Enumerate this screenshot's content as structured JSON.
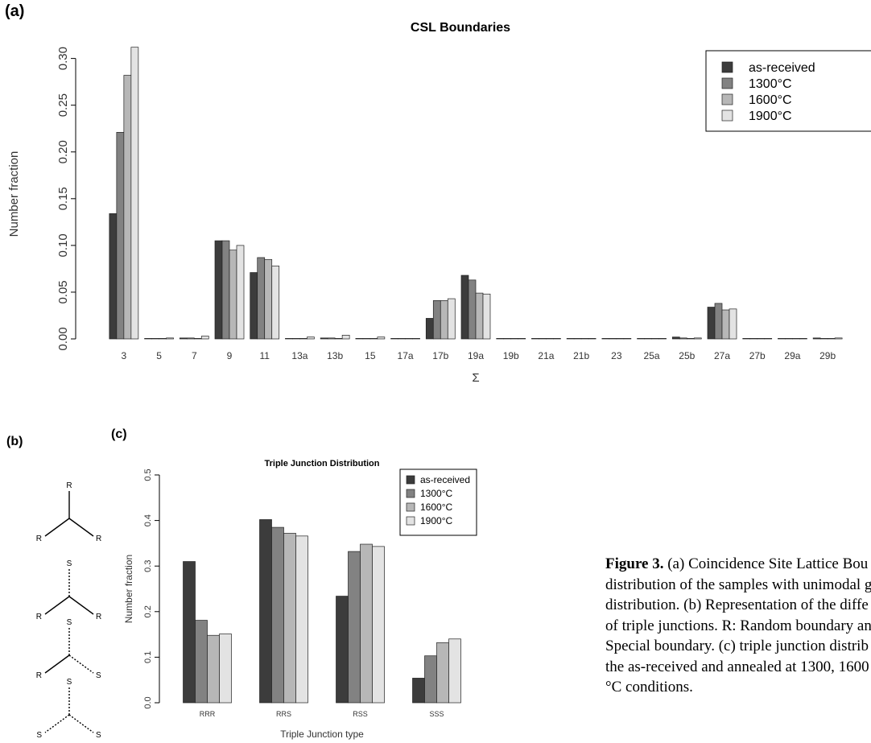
{
  "panels": {
    "a": "(a)",
    "b": "(b)",
    "c": "(c)"
  },
  "chart_data": [
    {
      "id": "csl",
      "type": "bar",
      "title": "CSL Boundaries",
      "xlabel": "Σ",
      "ylabel": "Number fraction",
      "ylim": [
        0,
        0.31
      ],
      "yticks": [
        "0.00",
        "0.05",
        "0.10",
        "0.15",
        "0.20",
        "0.25",
        "0.30"
      ],
      "grid": false,
      "legend_position": "top-right",
      "categories": [
        "3",
        "5",
        "7",
        "9",
        "11",
        "13a",
        "13b",
        "15",
        "17a",
        "17b",
        "19a",
        "19b",
        "21a",
        "21b",
        "23",
        "25a",
        "25b",
        "27a",
        "27b",
        "29a",
        "29b"
      ],
      "series": [
        {
          "name": "as-received",
          "color": "#3c3c3c",
          "values": [
            0.134,
            0.0,
            0.001,
            0.105,
            0.071,
            0.0,
            0.001,
            0.0,
            0.0,
            0.022,
            0.068,
            0.0,
            0.0,
            0.0,
            0.0,
            0.0,
            0.002,
            0.034,
            0.0,
            0.0,
            0.001
          ]
        },
        {
          "name": "1300°C",
          "color": "#828282",
          "values": [
            0.221,
            0.0,
            0.001,
            0.105,
            0.087,
            0.0,
            0.001,
            0.0,
            0.0,
            0.041,
            0.063,
            0.0,
            0.0,
            0.0,
            0.0,
            0.0,
            0.001,
            0.038,
            0.0,
            0.0,
            0.0
          ]
        },
        {
          "name": "1600°C",
          "color": "#b7b7b7",
          "values": [
            0.282,
            0.0,
            0.0,
            0.095,
            0.085,
            0.0,
            0.0,
            0.0,
            0.0,
            0.041,
            0.049,
            0.0,
            0.0,
            0.0,
            0.0,
            0.0,
            0.0,
            0.031,
            0.0,
            0.0,
            0.0
          ]
        },
        {
          "name": "1900°C",
          "color": "#e3e3e3",
          "values": [
            0.312,
            0.001,
            0.003,
            0.1,
            0.078,
            0.002,
            0.004,
            0.002,
            0.0,
            0.043,
            0.048,
            0.0,
            0.0,
            0.0,
            0.0,
            0.0,
            0.001,
            0.032,
            0.0,
            0.0,
            0.001
          ]
        }
      ]
    },
    {
      "id": "tj",
      "type": "bar",
      "title": "Triple Junction Distribution",
      "xlabel": "Triple Junction type",
      "ylabel": "Number fraction",
      "ylim": [
        0,
        0.5
      ],
      "yticks": [
        "0.0",
        "0.1",
        "0.2",
        "0.3",
        "0.4",
        "0.5"
      ],
      "grid": false,
      "legend_position": "top-right",
      "categories": [
        "RRR",
        "RRS",
        "RSS",
        "SSS"
      ],
      "series": [
        {
          "name": "as-received",
          "color": "#3c3c3c",
          "values": [
            0.31,
            0.402,
            0.234,
            0.054
          ]
        },
        {
          "name": "1300°C",
          "color": "#828282",
          "values": [
            0.181,
            0.385,
            0.332,
            0.103
          ]
        },
        {
          "name": "1600°C",
          "color": "#b7b7b7",
          "values": [
            0.148,
            0.372,
            0.348,
            0.132
          ]
        },
        {
          "name": "1900°C",
          "color": "#e3e3e3",
          "values": [
            0.151,
            0.366,
            0.343,
            0.14
          ]
        }
      ]
    }
  ],
  "diagram": {
    "junctions": [
      {
        "top": "R",
        "left": "R",
        "right": "R"
      },
      {
        "top": "S",
        "left": "R",
        "right": "R"
      },
      {
        "top": "S",
        "left": "R",
        "right": "S"
      },
      {
        "top": "S",
        "left": "S",
        "right": "S"
      }
    ]
  },
  "caption": {
    "label": "Figure 3.",
    "lines": [
      " (a) Coincidence Site Lattice Bou",
      "distribution of the samples with unimodal g",
      "distribution. (b) Representation of the diffe",
      "of triple junctions. R: Random boundary an",
      "Special boundary. (c) triple junction distrib",
      "the as-received and annealed at 1300, 1600",
      "°C conditions."
    ]
  }
}
